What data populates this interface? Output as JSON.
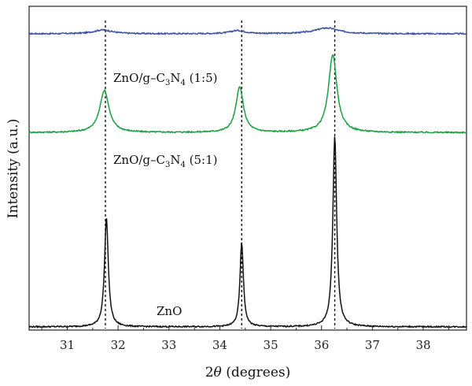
{
  "chart_data": {
    "type": "line",
    "xlabel_main": "2",
    "xlabel_theta": "θ",
    "xlabel_rest": " (degrees)",
    "ylabel": "Intensity (a.u.)",
    "xlim": [
      30.25,
      38.85
    ],
    "x_ticks": [
      31,
      32,
      33,
      34,
      35,
      36,
      37,
      38
    ],
    "grid": false,
    "legend": "none",
    "reference_lines": [
      31.75,
      34.43,
      36.26
    ],
    "series": [
      {
        "label_parts": {
          "base": "ZnO/g–C",
          "sub1": "3",
          "mid": "N",
          "sub2": "4",
          "tail": " (1:5)"
        },
        "color": "#3a4fa5",
        "baseline": 0.915,
        "peaks": [
          {
            "x": 31.7,
            "height": 0.012,
            "width": 0.22
          },
          {
            "x": 34.35,
            "height": 0.01,
            "width": 0.18
          },
          {
            "x": 36.1,
            "height": 0.018,
            "width": 0.28
          }
        ]
      },
      {
        "label_parts": {
          "base": "ZnO/g–C",
          "sub1": "3",
          "mid": "N",
          "sub2": "4",
          "tail": " (5:1)"
        },
        "color": "#18a040",
        "baseline": 0.61,
        "peaks": [
          {
            "x": 31.73,
            "height": 0.13,
            "width": 0.11
          },
          {
            "x": 34.39,
            "height": 0.14,
            "width": 0.09
          },
          {
            "x": 36.22,
            "height": 0.24,
            "width": 0.1
          }
        ]
      },
      {
        "label": "ZnO",
        "color": "#111111",
        "baseline": 0.01,
        "peaks": [
          {
            "x": 31.77,
            "height": 0.335,
            "width": 0.045
          },
          {
            "x": 34.43,
            "height": 0.26,
            "width": 0.04
          },
          {
            "x": 36.26,
            "height": 0.59,
            "width": 0.045
          }
        ]
      }
    ]
  }
}
